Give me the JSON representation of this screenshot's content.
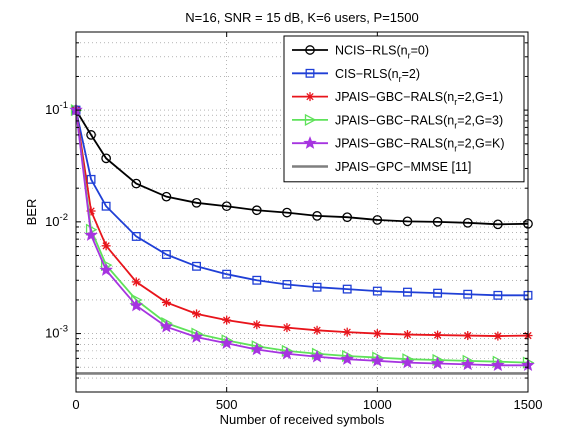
{
  "chart_data": {
    "type": "line",
    "title": "N=16, SNR = 15 dB, K=6 users, P=1500",
    "xlabel": "Number of received symbols",
    "ylabel": "BER",
    "xlim": [
      0,
      1500
    ],
    "ylim": [
      0.0003,
      0.5
    ],
    "yscale": "log",
    "grid": true,
    "legend_position": "top-right",
    "x_ticks": [
      0,
      500,
      1000,
      1500
    ],
    "y_ticks": [
      {
        "value": 0.1,
        "base": "10",
        "exp": "-1"
      },
      {
        "value": 0.01,
        "base": "10",
        "exp": "-2"
      },
      {
        "value": 0.001,
        "base": "10",
        "exp": "-3"
      }
    ],
    "x": [
      0,
      50,
      100,
      200,
      300,
      400,
      500,
      600,
      700,
      800,
      900,
      1000,
      1100,
      1200,
      1300,
      1400,
      1500
    ],
    "series": [
      {
        "name": "NCIS−RLS(n_r=0)",
        "label_parts": [
          "NCIS−RLS(n",
          "r",
          "=0)"
        ],
        "color": "#000000",
        "marker": "circle",
        "values": [
          0.1,
          0.06,
          0.037,
          0.022,
          0.0168,
          0.0148,
          0.0138,
          0.0127,
          0.0121,
          0.0113,
          0.011,
          0.0104,
          0.0101,
          0.01,
          0.0098,
          0.0095,
          0.0096
        ]
      },
      {
        "name": "CIS−RLS(n_r=2)",
        "label_parts": [
          "CIS−RLS(n",
          "r",
          "=2)"
        ],
        "color": "#1f3fd6",
        "marker": "square",
        "values": [
          0.1,
          0.024,
          0.0138,
          0.0074,
          0.0051,
          0.004,
          0.0034,
          0.003,
          0.00275,
          0.0026,
          0.0025,
          0.0024,
          0.00235,
          0.0023,
          0.00225,
          0.0022,
          0.0022
        ]
      },
      {
        "name": "JPAIS−GBC−RALS(n_r=2,G=1)",
        "label_parts": [
          "JPAIS−GBC−RALS(n",
          "r",
          "=2,G=1)"
        ],
        "color": "#e8141b",
        "marker": "star",
        "values": [
          0.1,
          0.0125,
          0.0061,
          0.0029,
          0.0019,
          0.0015,
          0.00132,
          0.0012,
          0.00113,
          0.00107,
          0.00103,
          0.001,
          0.00098,
          0.00097,
          0.00096,
          0.00095,
          0.00096
        ]
      },
      {
        "name": "JPAIS−GBC−RALS(n_r=2,G=3)",
        "label_parts": [
          "JPAIS−GBC−RALS(n",
          "r",
          "=2,G=3)"
        ],
        "color": "#5fe25a",
        "marker": "triangle-right",
        "values": [
          0.1,
          0.0085,
          0.0041,
          0.002,
          0.00124,
          0.001,
          0.00087,
          0.00077,
          0.0007,
          0.00066,
          0.00063,
          0.00061,
          0.00059,
          0.00058,
          0.00057,
          0.00056,
          0.00055
        ]
      },
      {
        "name": "JPAIS−GBC−RALS(n_r=2,G=K)",
        "label_parts": [
          "JPAIS−GBC−RALS(n",
          "r",
          "=2,G=K)"
        ],
        "color": "#a634e0",
        "marker": "pentagram",
        "values": [
          0.1,
          0.0076,
          0.0037,
          0.00178,
          0.00115,
          0.00093,
          0.00082,
          0.00072,
          0.00066,
          0.00062,
          0.00059,
          0.00057,
          0.00055,
          0.00054,
          0.00053,
          0.00052,
          0.00052
        ]
      },
      {
        "name": "JPAIS−GPC−MMSE [11]",
        "label_parts": [
          "JPAIS−GPC−MMSE [11]",
          "",
          ""
        ],
        "color": "#7f7f7f",
        "marker": "none",
        "values": [
          0.00044,
          0.00044,
          0.00044,
          0.00044,
          0.00044,
          0.00044,
          0.00044,
          0.00044,
          0.00044,
          0.00044,
          0.00044,
          0.00044,
          0.00044,
          0.00044,
          0.00044,
          0.00044,
          0.00044
        ]
      }
    ]
  }
}
